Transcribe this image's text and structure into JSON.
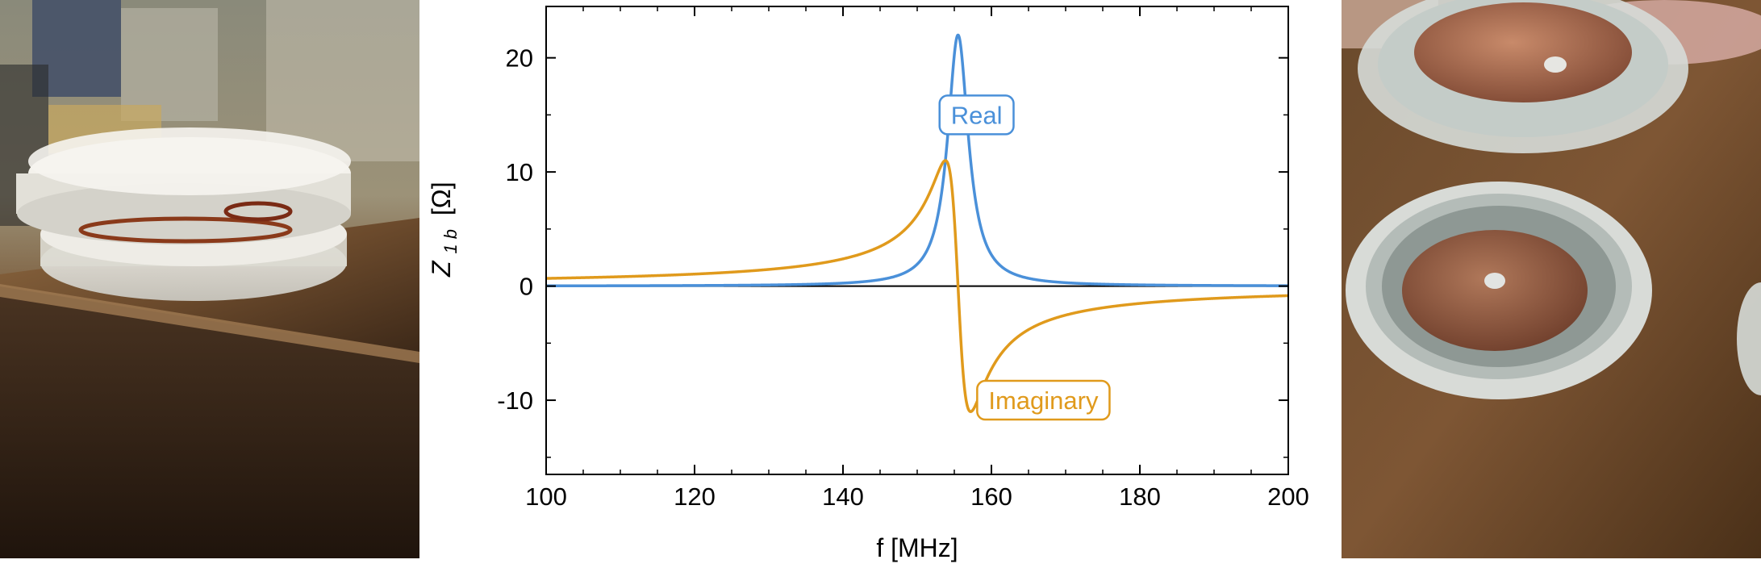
{
  "colors": {
    "real": "#4a90d9",
    "imaginary": "#e09a1c",
    "axis": "#000000",
    "background": "#ffffff"
  },
  "photos": {
    "left": {
      "icon": "coil-resonator-side-view-photo"
    },
    "right": {
      "icon": "coil-resonator-open-photo"
    }
  },
  "chart_data": {
    "type": "line",
    "title": "",
    "xlabel": "f [MHz]",
    "ylabel_main": "Z",
    "ylabel_sub": "1 b",
    "ylabel_unit": "[Ω]",
    "xlim": [
      100,
      200
    ],
    "ylim": [
      -16.5,
      24.5
    ],
    "xticks": [
      100,
      120,
      140,
      160,
      180,
      200
    ],
    "xtick_labels": [
      "100",
      "120",
      "140",
      "160",
      "180",
      "200"
    ],
    "yticks": [
      -10,
      0,
      10,
      20
    ],
    "ytick_labels": [
      "-10",
      "0",
      "10",
      "20"
    ],
    "model": {
      "f0_mhz": 155.5,
      "peak_real_ohm": 22,
      "half_width_mhz": 1.7
    },
    "series": [
      {
        "name": "Real",
        "label": "Real",
        "color": "#4a90d9",
        "label_at": {
          "x": 158,
          "y": 15
        }
      },
      {
        "name": "Imaginary",
        "label": "Imaginary",
        "color": "#e09a1c",
        "label_at": {
          "x": 167,
          "y": -10
        }
      }
    ]
  }
}
